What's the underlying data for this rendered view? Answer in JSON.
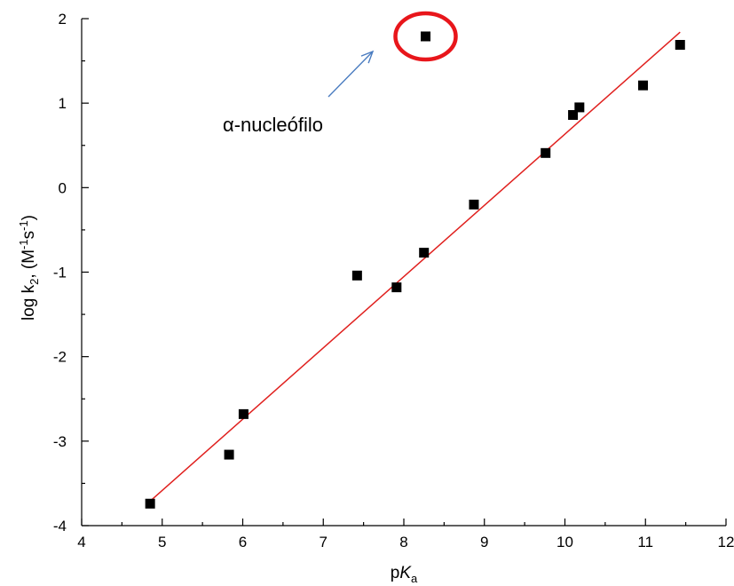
{
  "chart_data": {
    "type": "scatter",
    "xlim": [
      4,
      12
    ],
    "ylim": [
      -4,
      2
    ],
    "xticks": [
      4,
      5,
      6,
      7,
      8,
      9,
      10,
      11,
      12
    ],
    "yticks": [
      -4,
      -3,
      -2,
      -1,
      0,
      1,
      2
    ],
    "xticks_minor": [
      4.5,
      5.5,
      6.5,
      7.5,
      8.5,
      9.5,
      10.5,
      11.5
    ],
    "yticks_minor": [
      -3.5,
      -2.5,
      -1.5,
      -0.5,
      0.5,
      1.5
    ],
    "xlabel": {
      "prefix": "p",
      "italic": "K",
      "sub": "a"
    },
    "ylabel": {
      "t1": "log k",
      "sub": "2",
      "t2": ", (M",
      "sup1": "-1",
      "t3": "s",
      "sup2": "-1",
      "t4": ")"
    },
    "grid": false,
    "points": [
      {
        "x": 4.85,
        "y": -3.74
      },
      {
        "x": 5.83,
        "y": -3.16
      },
      {
        "x": 6.01,
        "y": -2.68
      },
      {
        "x": 7.42,
        "y": -1.04
      },
      {
        "x": 7.91,
        "y": -1.18
      },
      {
        "x": 8.25,
        "y": -0.77
      },
      {
        "x": 8.27,
        "y": 1.79
      },
      {
        "x": 8.87,
        "y": -0.2
      },
      {
        "x": 9.76,
        "y": 0.41
      },
      {
        "x": 10.1,
        "y": 0.86
      },
      {
        "x": 10.18,
        "y": 0.95
      },
      {
        "x": 10.97,
        "y": 1.21
      },
      {
        "x": 11.43,
        "y": 1.69
      }
    ],
    "fit_line": {
      "x": [
        4.85,
        11.43
      ],
      "y": [
        -3.71,
        1.84
      ],
      "color": "#e0201e"
    },
    "highlight": {
      "x": 8.27,
      "y": 1.79,
      "color": "#e8161b"
    },
    "annotation": {
      "text": "α-nucleófilo",
      "arrow_color": "#4a7cc0"
    },
    "marker_color": "#000000"
  }
}
